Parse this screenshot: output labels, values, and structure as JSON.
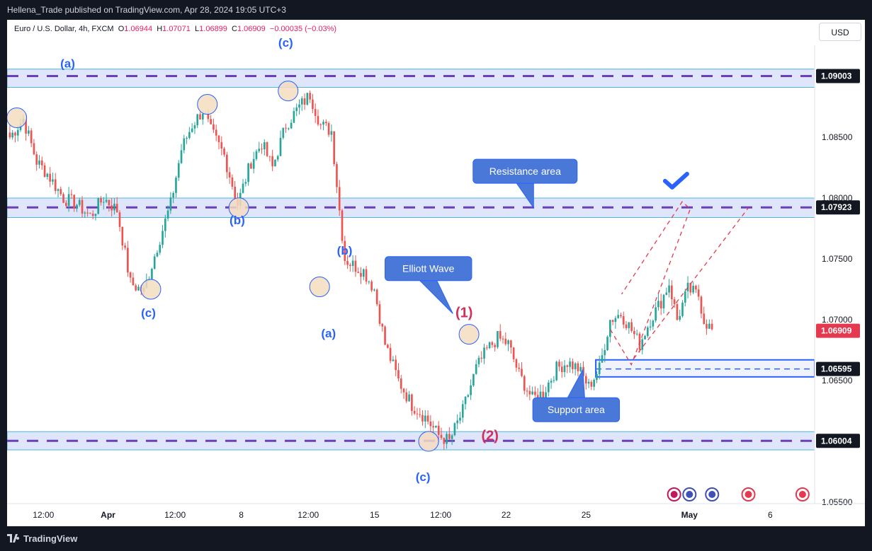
{
  "header": {
    "publisher": "Hellena_Trade published on TradingView.com, Apr 28, 2024 19:05 UTC+3"
  },
  "legend": {
    "symbol": "Euro / U.S. Dollar, 4h, FXCM",
    "open_label": "O",
    "open": "1.06944",
    "high_label": "H",
    "high": "1.07071",
    "low_label": "L",
    "low": "1.06899",
    "close_label": "C",
    "close": "1.06909",
    "change": "−0.00035 (−0.03%)"
  },
  "currency_button": "USD",
  "footer": {
    "brand": "TradingView"
  },
  "colors": {
    "up": "#26a69a",
    "down": "#ef5350",
    "zone": "#c5d0f5",
    "dash": "#6b3fb8",
    "wave_blue": "#2962ff",
    "wave_red": "#d32f5b"
  },
  "chart_data": {
    "type": "candlestick",
    "symbol": "EUR/USD",
    "timeframe": "4h",
    "ylim": [
      1.0549,
      1.0937
    ],
    "y_ticks": [
      "1.08500",
      "1.08000",
      "1.07500",
      "1.07000",
      "1.06500",
      "1.05500"
    ],
    "x_ticks": [
      {
        "label": "12:00",
        "pos": 0.045
      },
      {
        "label": "Apr",
        "pos": 0.125
      },
      {
        "label": "12:00",
        "pos": 0.208
      },
      {
        "label": "8",
        "pos": 0.29
      },
      {
        "label": "12:00",
        "pos": 0.373
      },
      {
        "label": "15",
        "pos": 0.455
      },
      {
        "label": "12:00",
        "pos": 0.537
      },
      {
        "label": "22",
        "pos": 0.618
      },
      {
        "label": "25",
        "pos": 0.717
      },
      {
        "label": "May",
        "pos": 0.845
      },
      {
        "label": "6",
        "pos": 0.945
      }
    ],
    "price_labels": [
      {
        "value": 1.09003,
        "text": "1.09003",
        "style": "dark"
      },
      {
        "value": 1.07923,
        "text": "1.07923",
        "style": "dark"
      },
      {
        "value": 1.06909,
        "text": "1.06909",
        "style": "red"
      },
      {
        "value": 1.06595,
        "text": "1.06595",
        "style": "dark"
      },
      {
        "value": 1.06004,
        "text": "1.06004",
        "style": "dark"
      }
    ],
    "zones": [
      {
        "name": "top-zone",
        "from": 1.0891,
        "to": 1.0906,
        "line": 1.09003
      },
      {
        "name": "resistance-zone",
        "from": 1.0784,
        "to": 1.08,
        "line": 1.07923
      },
      {
        "name": "support-zone",
        "from": 1.0653,
        "to": 1.0667,
        "line": 1.06595
      },
      {
        "name": "bottom-zone",
        "from": 1.0593,
        "to": 1.0608,
        "line": 1.06004
      }
    ],
    "anchors": [
      [
        0,
        1.085
      ],
      [
        5,
        1.0865
      ],
      [
        10,
        1.083
      ],
      [
        14,
        1.082
      ],
      [
        20,
        1.08
      ],
      [
        25,
        1.0795
      ],
      [
        30,
        1.0785
      ],
      [
        35,
        1.08
      ],
      [
        40,
        1.079
      ],
      [
        45,
        1.073
      ],
      [
        50,
        1.0723
      ],
      [
        55,
        1.076
      ],
      [
        60,
        1.0795
      ],
      [
        64,
        1.084
      ],
      [
        68,
        1.086
      ],
      [
        72,
        1.0872
      ],
      [
        75,
        1.0855
      ],
      [
        80,
        1.0835
      ],
      [
        85,
        1.0795
      ],
      [
        90,
        1.083
      ],
      [
        94,
        1.0845
      ],
      [
        98,
        1.0825
      ],
      [
        103,
        1.086
      ],
      [
        108,
        1.0875
      ],
      [
        112,
        1.0885
      ],
      [
        116,
        1.086
      ],
      [
        120,
        1.0855
      ],
      [
        123,
        1.079
      ],
      [
        125,
        1.075
      ],
      [
        128,
        1.0745
      ],
      [
        132,
        1.074
      ],
      [
        136,
        1.0725
      ],
      [
        140,
        1.068
      ],
      [
        145,
        1.065
      ],
      [
        150,
        1.063
      ],
      [
        155,
        1.062
      ],
      [
        160,
        1.0605
      ],
      [
        164,
        1.06
      ],
      [
        169,
        1.0625
      ],
      [
        174,
        1.066
      ],
      [
        178,
        1.0675
      ],
      [
        182,
        1.0685
      ],
      [
        186,
        1.068
      ],
      [
        190,
        1.0655
      ],
      [
        195,
        1.0635
      ],
      [
        199,
        1.064
      ],
      [
        204,
        1.066
      ],
      [
        208,
        1.0665
      ],
      [
        212,
        1.066
      ],
      [
        216,
        1.0645
      ],
      [
        220,
        1.066
      ],
      [
        224,
        1.07
      ],
      [
        228,
        1.0705
      ],
      [
        231,
        1.0695
      ],
      [
        235,
        1.068
      ],
      [
        239,
        1.07
      ],
      [
        243,
        1.0715
      ],
      [
        246,
        1.073
      ],
      [
        249,
        1.07
      ],
      [
        253,
        1.0725
      ],
      [
        257,
        1.072
      ],
      [
        259,
        1.07
      ],
      [
        262,
        1.0691
      ]
    ],
    "candle_count": 263,
    "annotations": {
      "labels": [
        {
          "text": "(a)",
          "color": "blue",
          "x": 0.075,
          "price": 1.091
        },
        {
          "text": "(c)",
          "color": "blue",
          "x": 0.345,
          "price": 1.0927
        },
        {
          "text": "(b)",
          "color": "blue",
          "x": 0.285,
          "price": 1.0781
        },
        {
          "text": "(c)",
          "color": "blue",
          "x": 0.175,
          "price": 1.0705
        },
        {
          "text": "(b)",
          "color": "blue",
          "x": 0.418,
          "price": 1.0756
        },
        {
          "text": "(a)",
          "color": "blue",
          "x": 0.398,
          "price": 1.0688
        },
        {
          "text": "(c)",
          "color": "blue",
          "x": 0.515,
          "price": 1.057
        },
        {
          "text": "(1)",
          "color": "red",
          "x": 0.566,
          "price": 1.0705
        },
        {
          "text": "(2)",
          "color": "red",
          "x": 0.598,
          "price": 1.0604
        }
      ],
      "circles": [
        {
          "x": 0.012,
          "price": 1.0866
        },
        {
          "x": 0.248,
          "price": 1.0877
        },
        {
          "x": 0.348,
          "price": 1.0888
        },
        {
          "x": 0.178,
          "price": 1.0725
        },
        {
          "x": 0.287,
          "price": 1.0792
        },
        {
          "x": 0.387,
          "price": 1.0727
        },
        {
          "x": 0.522,
          "price": 1.06
        },
        {
          "x": 0.572,
          "price": 1.0688
        }
      ],
      "callouts": [
        {
          "text": "Resistance area",
          "box_x": 0.577,
          "price": 1.0822,
          "tip_x": 0.652,
          "tip_price": 1.0792
        },
        {
          "text": "Elliott Wave",
          "box_x": 0.468,
          "price": 1.0742,
          "tip_x": 0.552,
          "tip_price": 1.0705
        },
        {
          "text": "Support area",
          "box_x": 0.651,
          "price": 1.0626,
          "tip_x": 0.713,
          "tip_price": 1.0659
        }
      ],
      "checkmark": {
        "x": 0.828,
        "price": 1.0814
      }
    }
  }
}
